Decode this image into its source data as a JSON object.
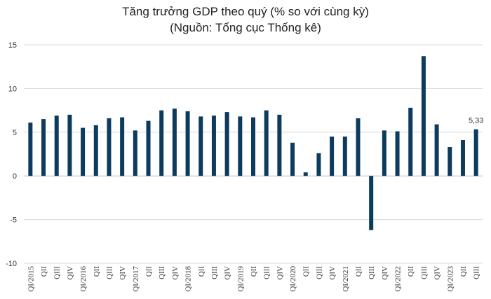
{
  "chart_data": {
    "type": "bar",
    "title": "Tăng trưởng GDP theo quý (% so với cùng kỳ)",
    "subtitle": "(Nguồn: Tổng cục Thống kê)",
    "xlabel": "",
    "ylabel": "",
    "ylim": [
      -10,
      15
    ],
    "yticks": [
      "-10",
      "-5",
      "0",
      "5",
      "10",
      "15"
    ],
    "grid": true,
    "bar_color": "#0d3b5e",
    "categories": [
      "QI/2015",
      "QII",
      "QIII",
      "QIV",
      "QI/2016",
      "QII",
      "QIII",
      "QIV",
      "QI/2017",
      "QII",
      "QIII",
      "QIV",
      "QI/2018",
      "QII",
      "QIII",
      "QIV",
      "QI/2019",
      "QII",
      "QIII",
      "QIV",
      "QI/2020",
      "QII",
      "QIII",
      "QIV",
      "QI/2021",
      "QII",
      "QIII",
      "QIV",
      "QI/2022",
      "QII",
      "QIII",
      "QIV",
      "QI/2023",
      "QII",
      "QIII"
    ],
    "values": [
      6.1,
      6.5,
      6.9,
      7.0,
      5.5,
      5.8,
      6.6,
      6.7,
      5.2,
      6.3,
      7.5,
      7.7,
      7.4,
      6.8,
      6.9,
      7.3,
      6.8,
      6.7,
      7.5,
      7.0,
      3.8,
      0.4,
      2.6,
      4.5,
      4.5,
      6.6,
      -6.2,
      5.2,
      5.1,
      7.8,
      13.7,
      5.9,
      3.3,
      4.1,
      5.33
    ],
    "data_labels": [
      {
        "index": 34,
        "text": "5,33"
      }
    ]
  }
}
